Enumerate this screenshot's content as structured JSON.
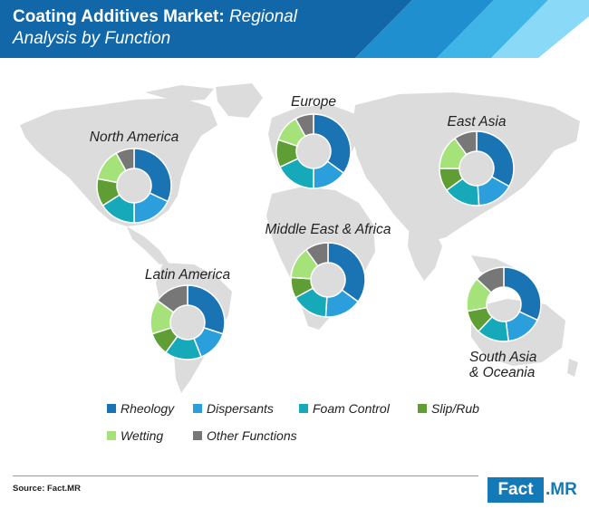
{
  "title": {
    "bold": "Coating Additives Market:",
    "italic_line1": "Regional",
    "italic_line2": "Analysis by Function"
  },
  "source": "Source: Fact.MR",
  "logo": {
    "part1": "Fact",
    "part2": ".MR"
  },
  "colors": {
    "Rheology": "#1a74b4",
    "Dispersants": "#2a9fdb",
    "Foam Control": "#15a9ba",
    "Slip/Rub": "#5e9e34",
    "Wetting": "#a5e27a",
    "Other Functions": "#777777",
    "header_dark": "#1167a8",
    "header_light": "#7fd4f5"
  },
  "chart_data": {
    "type": "pie",
    "donut": true,
    "categories": [
      "Rheology",
      "Dispersants",
      "Foam Control",
      "Slip/Rub",
      "Wetting",
      "Other Functions"
    ],
    "legend_position": "bottom",
    "regions": [
      {
        "name": "North America",
        "values": [
          32,
          18,
          16,
          12,
          14,
          8
        ]
      },
      {
        "name": "Europe",
        "values": [
          35,
          15,
          18,
          12,
          12,
          8
        ]
      },
      {
        "name": "East Asia",
        "values": [
          33,
          16,
          16,
          10,
          15,
          10
        ]
      },
      {
        "name": "Middle East & Africa",
        "values": [
          35,
          16,
          16,
          9,
          14,
          10
        ]
      },
      {
        "name": "Latin America",
        "values": [
          30,
          14,
          16,
          10,
          15,
          15
        ]
      },
      {
        "name": "South Asia & Oceania",
        "values": [
          32,
          16,
          14,
          10,
          15,
          13
        ]
      }
    ]
  }
}
